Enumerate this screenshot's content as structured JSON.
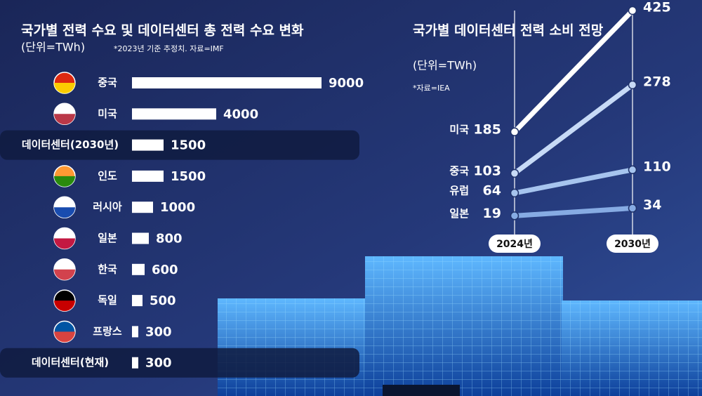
{
  "chart_data": [
    {
      "type": "bar",
      "orientation": "horizontal",
      "title": "국가별 전력 수요 및 데이터센터 총 전력 수요 변화",
      "subtitle": "(단위=TWh)",
      "note": "*2023년 기준 추정치. 자료=IMF",
      "categories": [
        "중국",
        "미국",
        "데이터센터(2030년)",
        "인도",
        "러시아",
        "일본",
        "한국",
        "독일",
        "프랑스",
        "데이터센터(현재)"
      ],
      "values": [
        9000,
        4000,
        1500,
        1500,
        1000,
        800,
        600,
        500,
        300,
        300
      ],
      "color": "#ffffff",
      "xlim": [
        0,
        9000
      ]
    },
    {
      "type": "line",
      "title": "국가별 데이터센터 전력 소비 전망",
      "subtitle": "(단위=TWh)",
      "note": "*자료=IEA",
      "categories": [
        "2024년",
        "2030년"
      ],
      "series": [
        {
          "name": "미국",
          "color": "#ffffff",
          "values": [
            185,
            425
          ]
        },
        {
          "name": "중국",
          "color": "#c7daf6",
          "values": [
            103,
            278
          ]
        },
        {
          "name": "유럽",
          "color": "#a6c4ee",
          "values": [
            64,
            110
          ]
        },
        {
          "name": "일본",
          "color": "#86abe3",
          "values": [
            19,
            34
          ]
        }
      ],
      "ylim": [
        0,
        425
      ]
    }
  ]
}
